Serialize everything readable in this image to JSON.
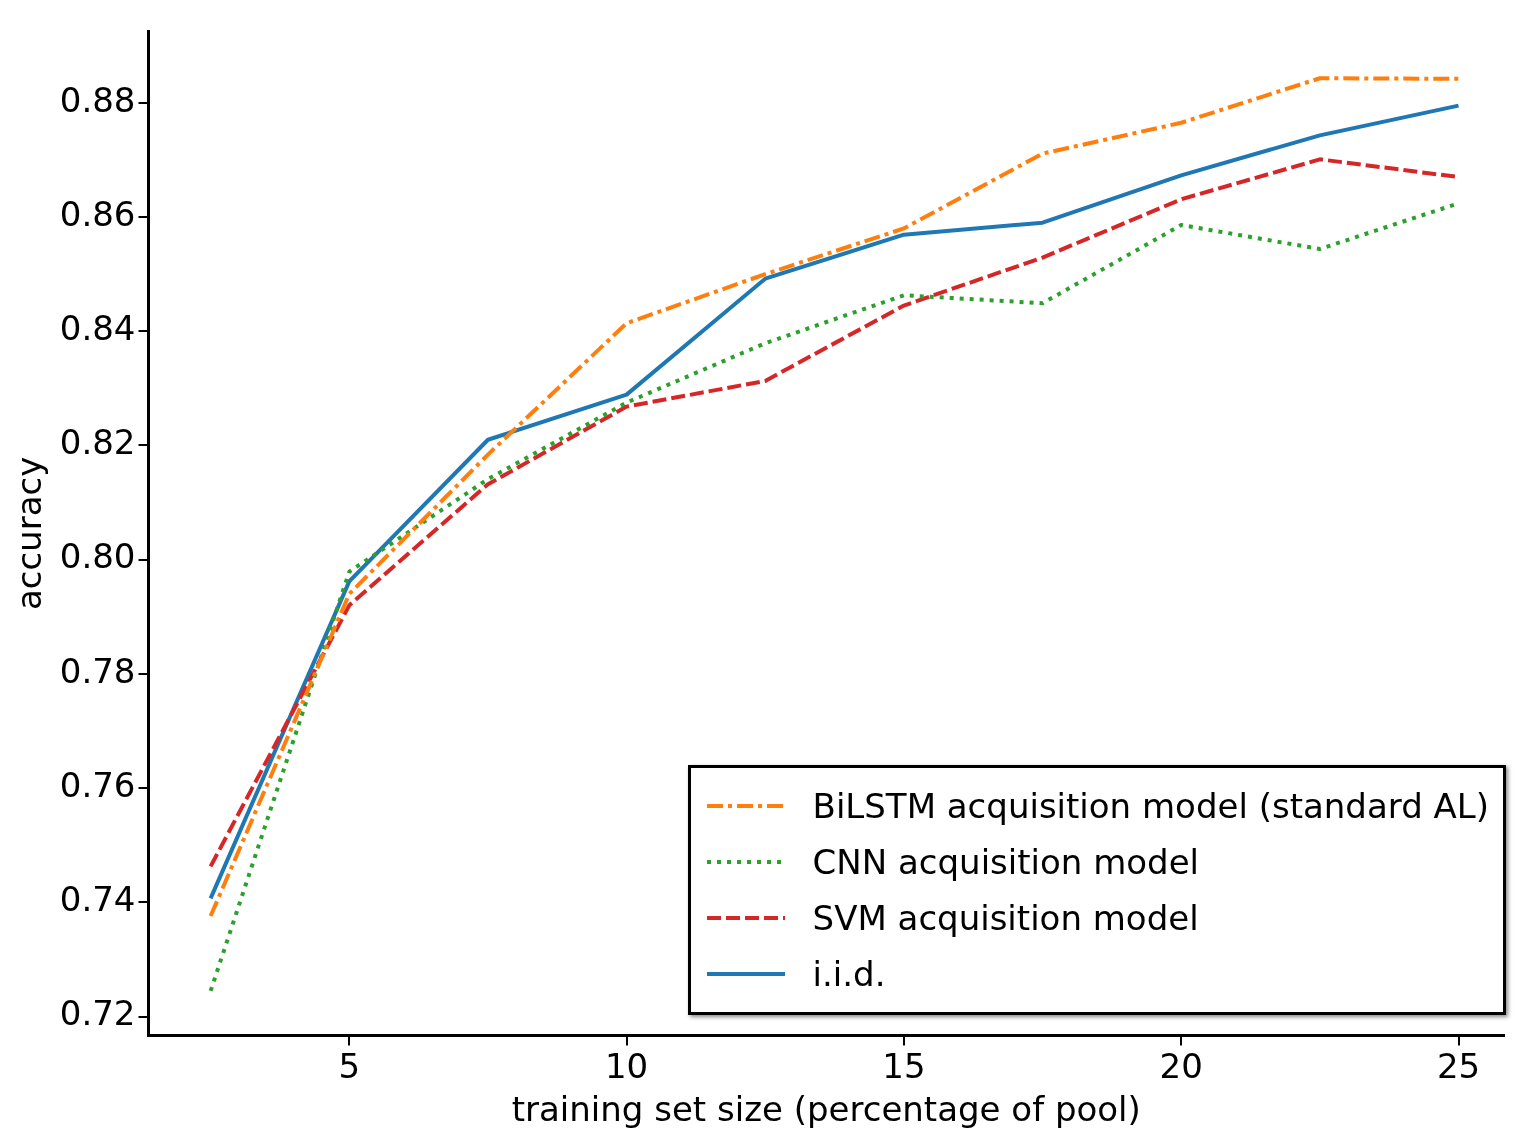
{
  "chart_data": {
    "type": "line",
    "xlabel": "training set size (percentage of pool)",
    "ylabel": "accuracy",
    "x": [
      2.5,
      5,
      7.5,
      10,
      12.5,
      15,
      17.5,
      20,
      22.5,
      25
    ],
    "series": [
      {
        "name": "BiLSTM acquisition model (standard AL)",
        "color": "#ff7f0e",
        "line_style": "dashdot",
        "values": [
          0.7376,
          0.794,
          0.8184,
          0.8414,
          0.85,
          0.858,
          0.8711,
          0.8765,
          0.8843,
          0.8842
        ]
      },
      {
        "name": "CNN acquisition model",
        "color": "#2ca02c",
        "line_style": "dotted",
        "values": [
          0.7245,
          0.7979,
          0.8141,
          0.8275,
          0.8379,
          0.8463,
          0.8449,
          0.8586,
          0.8544,
          0.8624
        ]
      },
      {
        "name": "SVM acquisition model",
        "color": "#d62728",
        "line_style": "dashed",
        "values": [
          0.7463,
          0.792,
          0.8132,
          0.8268,
          0.8313,
          0.8445,
          0.8529,
          0.8631,
          0.8701,
          0.867
        ]
      },
      {
        "name": "i.i.d.",
        "color": "#1f77b4",
        "line_style": "solid",
        "values": [
          0.7407,
          0.7962,
          0.821,
          0.8289,
          0.8492,
          0.8569,
          0.859,
          0.8673,
          0.8743,
          0.8795
        ]
      }
    ],
    "xlim": [
      1.38,
      25.82
    ],
    "ylim": [
      0.7167,
      0.8925
    ],
    "xticks": [
      5,
      10,
      15,
      20,
      25
    ],
    "yticks": [
      0.72,
      0.74,
      0.76,
      0.78,
      {
        "value": 0.8,
        "label": "0.80"
      },
      0.82,
      0.84,
      0.86,
      0.88
    ],
    "grid": false,
    "legend": "bottom right",
    "marker": "none"
  }
}
